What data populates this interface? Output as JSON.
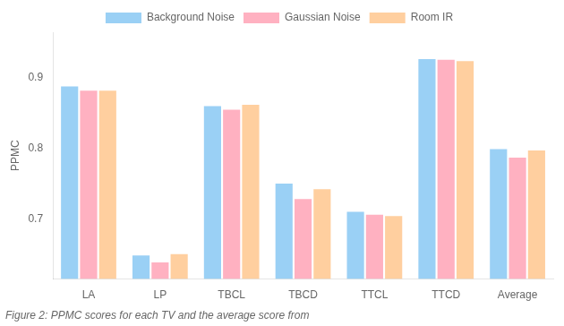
{
  "chart_data": {
    "type": "bar",
    "caption": "Figure 2: PPMC scores for each TV and the average score from",
    "ylabel": "PPMC",
    "categories": [
      "LA",
      "LP",
      "TBCL",
      "TBCD",
      "TTCL",
      "TTCD",
      "Average"
    ],
    "series": [
      {
        "name": "Background Noise",
        "values": [
          0.888,
          0.648,
          0.86,
          0.75,
          0.71,
          0.927,
          0.799
        ]
      },
      {
        "name": "Gaussian Noise",
        "values": [
          0.882,
          0.638,
          0.855,
          0.728,
          0.706,
          0.926,
          0.787
        ]
      },
      {
        "name": "Room IR",
        "values": [
          0.882,
          0.65,
          0.862,
          0.742,
          0.704,
          0.924,
          0.797
        ]
      }
    ],
    "ylim": [
      0.615,
      0.965
    ],
    "yticks": [
      0.7,
      0.8,
      0.9
    ],
    "legend": "top",
    "grid": false
  }
}
